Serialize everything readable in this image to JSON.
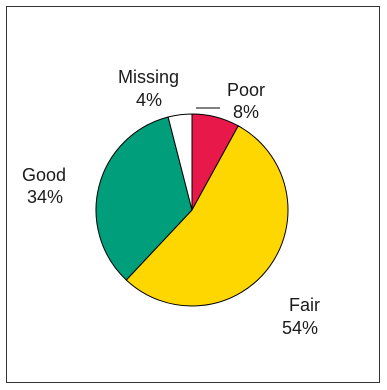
{
  "chart_data": {
    "type": "pie",
    "title": "",
    "start_angle_deg": 0,
    "direction": "clockwise",
    "slices": [
      {
        "label": "Poor",
        "value": 8,
        "value_label": "8%",
        "color": "#e8194a"
      },
      {
        "label": "Fair",
        "value": 54,
        "value_label": "54%",
        "color": "#ffd700"
      },
      {
        "label": "Good",
        "value": 34,
        "value_label": "34%",
        "color": "#009e7a"
      },
      {
        "label": "Missing",
        "value": 4,
        "value_label": "4%",
        "color": "#ffffff"
      }
    ],
    "legend": "none (labels placed beside slices)"
  }
}
